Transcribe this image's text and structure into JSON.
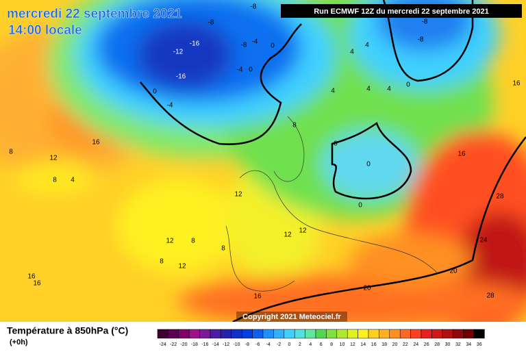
{
  "header": {
    "date": "mercredi 22 septembre 2021",
    "time": "14:00 locale",
    "run": "Run ECMWF 12Z du mercredi 22 septembre 2021"
  },
  "map": {
    "copyright": "Copyright 2021 Meteociel.fr",
    "contour_labels": [
      -8,
      -8,
      -16,
      -12,
      -8,
      -4,
      0,
      -16,
      -4,
      0,
      0,
      -4,
      -8,
      -8,
      0,
      4,
      4,
      4,
      4,
      4,
      16,
      8,
      0,
      0,
      16,
      12,
      8,
      8,
      4,
      16,
      12,
      0,
      28,
      24,
      12,
      8,
      12,
      12,
      8,
      8,
      12,
      16,
      16,
      20,
      20,
      16,
      28
    ]
  },
  "legend": {
    "title": "Température à 850hPa (°C)",
    "subtitle": "(+0h)",
    "ticks": [
      -24,
      -22,
      -20,
      -18,
      -16,
      -14,
      -12,
      -10,
      -8,
      -6,
      -4,
      -2,
      0,
      2,
      4,
      6,
      8,
      10,
      12,
      14,
      16,
      18,
      20,
      22,
      24,
      26,
      28,
      30,
      32,
      34,
      36
    ],
    "colors": [
      "#3d0030",
      "#5a0050",
      "#80006a",
      "#a0108a",
      "#7a1a9a",
      "#4b1aa8",
      "#2a20b0",
      "#1030c8",
      "#0040e0",
      "#1060f0",
      "#2090f8",
      "#30b0ff",
      "#40d0ff",
      "#50e0e0",
      "#60e8a0",
      "#50d850",
      "#80e040",
      "#b0e830",
      "#e0f020",
      "#fff020",
      "#ffd020",
      "#ffb020",
      "#ff9020",
      "#ff6820",
      "#ff4020",
      "#e82020",
      "#d01818",
      "#b01010",
      "#900808",
      "#700000",
      "#000000"
    ]
  }
}
